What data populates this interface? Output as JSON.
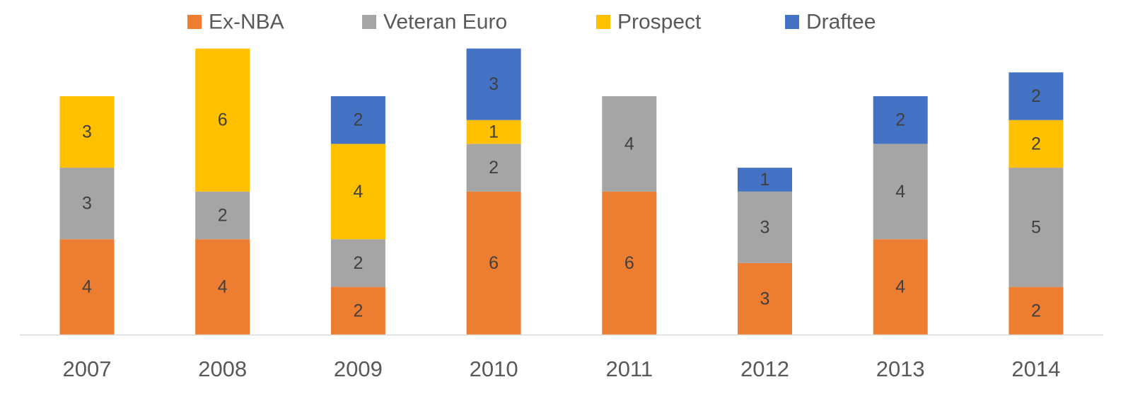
{
  "chart_data": {
    "type": "bar",
    "stacked": true,
    "title": "",
    "xlabel": "",
    "ylabel": "",
    "categories": [
      "2007",
      "2008",
      "2009",
      "2010",
      "2011",
      "2012",
      "2013",
      "2014"
    ],
    "series": [
      {
        "name": "Ex-NBA",
        "color": "#ED7D31",
        "values": [
          4,
          4,
          2,
          6,
          6,
          3,
          4,
          2
        ]
      },
      {
        "name": "Veteran Euro",
        "color": "#A5A5A5",
        "values": [
          3,
          2,
          2,
          2,
          4,
          3,
          4,
          5
        ]
      },
      {
        "name": "Prospect",
        "color": "#FFC000",
        "values": [
          3,
          6,
          4,
          1,
          0,
          0,
          0,
          2
        ]
      },
      {
        "name": "Draftee",
        "color": "#4472C4",
        "values": [
          0,
          0,
          2,
          3,
          0,
          1,
          2,
          2
        ]
      }
    ],
    "ylim": [
      0,
      12
    ],
    "grid": false,
    "data_labels": true,
    "legend_position": "top",
    "y_axis_visible": false
  }
}
